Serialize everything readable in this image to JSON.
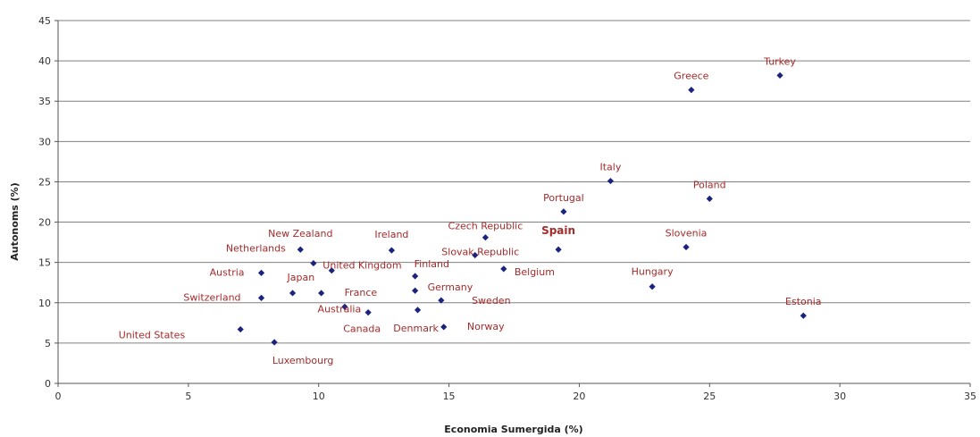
{
  "chart_data": {
    "type": "scatter",
    "title": "",
    "xlabel": "Economia Sumergida (%)",
    "ylabel": "Autonoms (%)",
    "xlim": [
      0,
      35
    ],
    "ylim": [
      0,
      45
    ],
    "x_ticks": [
      0,
      5,
      10,
      15,
      20,
      25,
      30,
      35
    ],
    "y_ticks": [
      0,
      5,
      10,
      15,
      20,
      25,
      30,
      35,
      40,
      45
    ],
    "grid": "horizontal",
    "legend": "none",
    "point_color": "#1a237e",
    "label_color": "#a52a2a",
    "points": [
      {
        "label": "Turkey",
        "x": 27.7,
        "y": 38.2
      },
      {
        "label": "Greece",
        "x": 24.3,
        "y": 36.4
      },
      {
        "label": "Italy",
        "x": 21.2,
        "y": 25.1
      },
      {
        "label": "Poland",
        "x": 25.0,
        "y": 22.9
      },
      {
        "label": "Portugal",
        "x": 19.4,
        "y": 21.3
      },
      {
        "label": "Czech Republic",
        "x": 16.4,
        "y": 18.1
      },
      {
        "label": "Spain",
        "x": 19.2,
        "y": 16.6
      },
      {
        "label": "Slovenia",
        "x": 24.1,
        "y": 16.9
      },
      {
        "label": "Slovak Republic",
        "x": 16.0,
        "y": 15.9
      },
      {
        "label": "Belgium",
        "x": 17.1,
        "y": 14.2
      },
      {
        "label": "Hungary",
        "x": 22.8,
        "y": 12.0
      },
      {
        "label": "Estonia",
        "x": 28.6,
        "y": 8.4
      },
      {
        "label": "New Zealand",
        "x": 9.3,
        "y": 16.6
      },
      {
        "label": "Ireland",
        "x": 12.8,
        "y": 16.5
      },
      {
        "label": "Netherlands",
        "x": 9.8,
        "y": 14.9
      },
      {
        "label": "United Kingdom",
        "x": 10.5,
        "y": 14.0
      },
      {
        "label": "Austria",
        "x": 7.8,
        "y": 13.7
      },
      {
        "label": "Finland",
        "x": 13.7,
        "y": 13.3
      },
      {
        "label": "Japan",
        "x": 9.0,
        "y": 11.2
      },
      {
        "label": "Germany",
        "x": 13.7,
        "y": 11.5
      },
      {
        "label": "Switzerland",
        "x": 7.8,
        "y": 10.6
      },
      {
        "label": "France",
        "x": 10.1,
        "y": 11.2
      },
      {
        "label": "Sweden",
        "x": 14.7,
        "y": 10.3
      },
      {
        "label": "Australia",
        "x": 11.0,
        "y": 9.5
      },
      {
        "label": "Canada",
        "x": 11.9,
        "y": 8.8
      },
      {
        "label": "Denmark",
        "x": 13.8,
        "y": 9.1
      },
      {
        "label": "Norway",
        "x": 14.8,
        "y": 7.0
      },
      {
        "label": "United States",
        "x": 7.0,
        "y": 6.7
      },
      {
        "label": "Luxembourg",
        "x": 8.3,
        "y": 5.1
      }
    ]
  }
}
